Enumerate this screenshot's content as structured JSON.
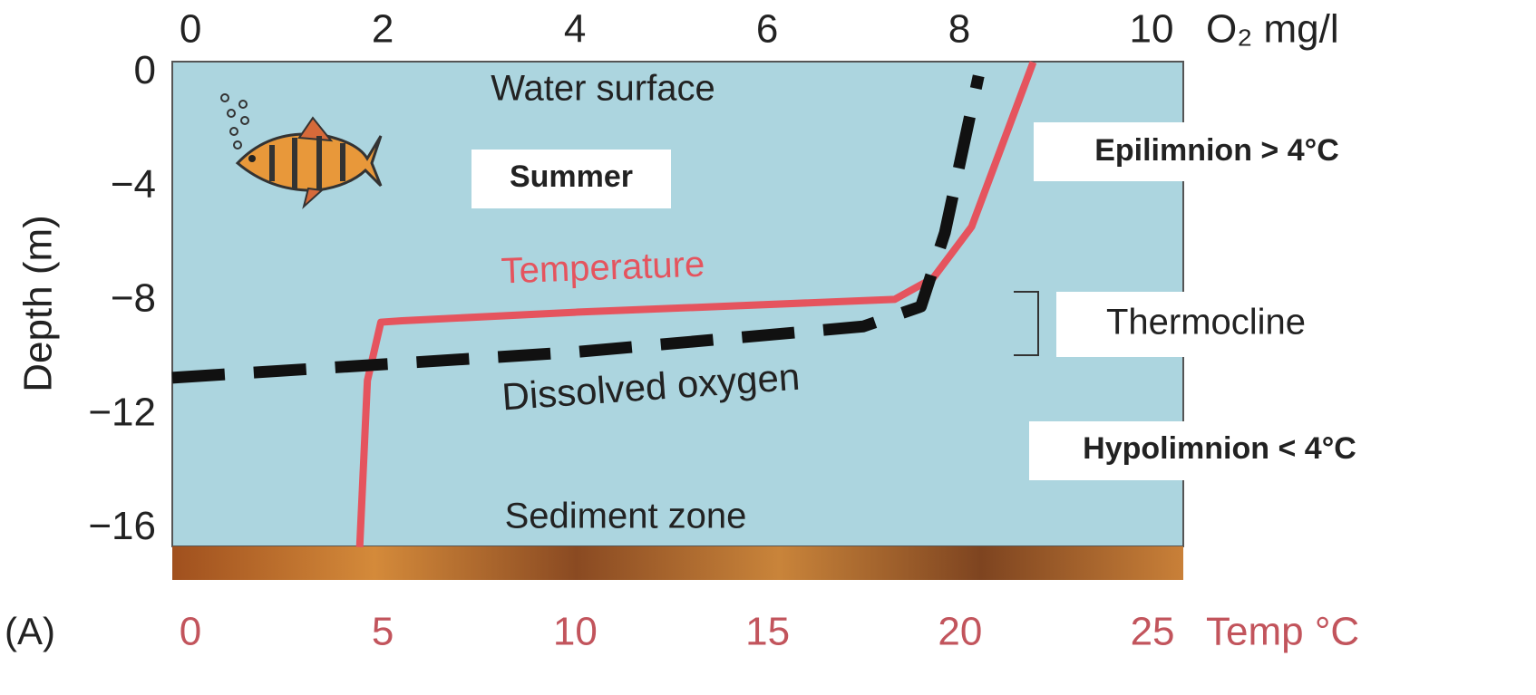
{
  "chart_data": {
    "type": "line",
    "panel_label": "(A)",
    "y_label": "Depth (m)",
    "x_label": "O₂ mg/l",
    "x2_label": "Temp °C",
    "xlim": [
      -0.19,
      10.33
    ],
    "xticks": [
      0,
      2,
      4,
      6,
      8,
      10
    ],
    "x2lim": [
      -0.47,
      25.8
    ],
    "x2ticks": [
      0,
      5,
      10,
      15,
      20,
      25
    ],
    "ylim": [
      -17.8,
      0.4
    ],
    "yticks": [
      0,
      {
        "value": -4,
        "label": "−4"
      },
      {
        "value": -8,
        "label": "−8"
      },
      {
        "value": -12,
        "label": "−12"
      },
      {
        "value": -16,
        "label": "−16"
      }
    ],
    "x2_color": "#c2545c",
    "series": [
      {
        "name": "Temperature",
        "color": "#e5545e",
        "axis": "x2",
        "x": [
          4.4,
          4.6,
          4.95,
          5.5,
          10,
          18.3,
          19.3,
          20.3,
          21.9
        ],
        "y": [
          -16.65,
          -10.8,
          -8.75,
          -8.7,
          -8.4,
          -7.95,
          -7.2,
          -5.4,
          0.38
        ]
      },
      {
        "name": "Dissolved oxygen",
        "color": "#111111",
        "x": [
          -0.19,
          4,
          7.0,
          7.6,
          7.85,
          8.2
        ],
        "y": [
          -10.7,
          -9.8,
          -8.9,
          -8.2,
          -5.6,
          -0.1
        ]
      }
    ],
    "annotations": [
      "Water surface",
      "Summer",
      "Sediment zone",
      "Epilimnion > 4°C",
      "Thermocline",
      "Hypolimnion < 4°C"
    ]
  }
}
